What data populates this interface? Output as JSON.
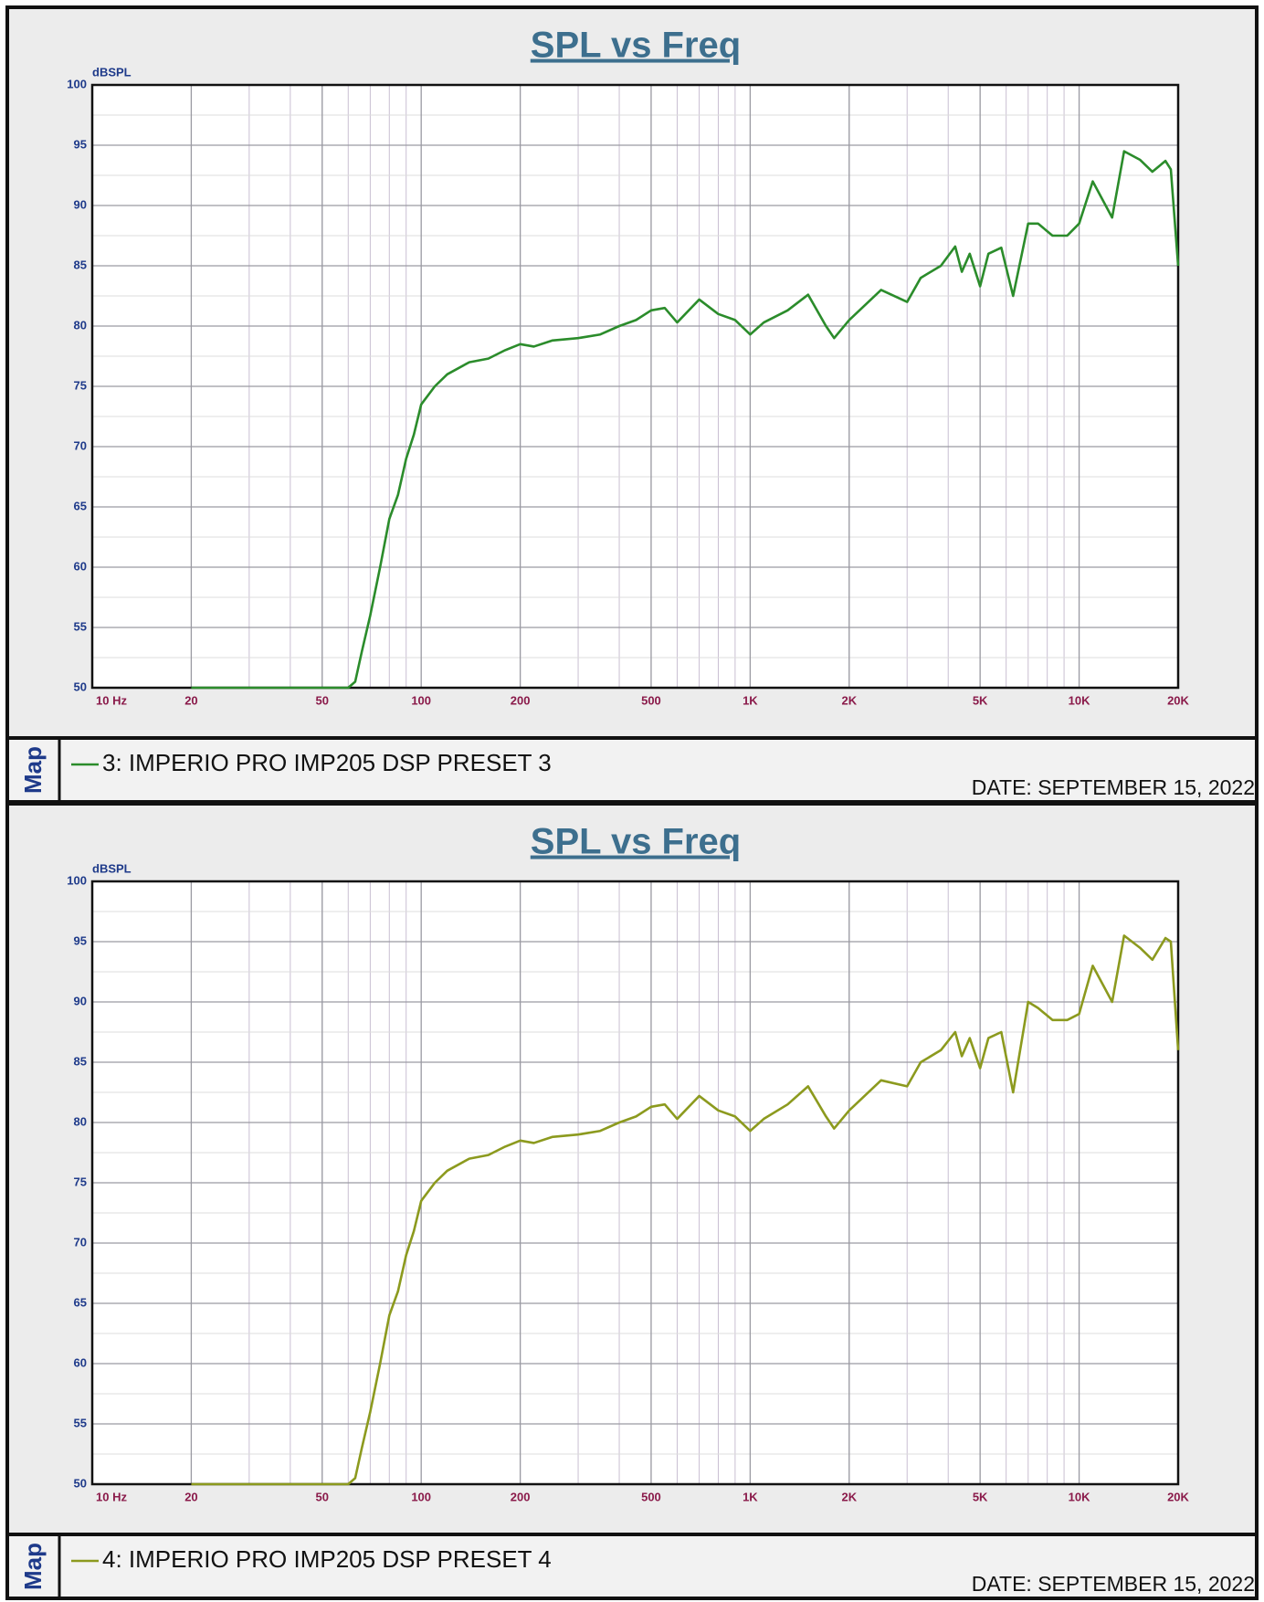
{
  "chart_data": [
    {
      "type": "line",
      "title": "SPL vs Freq",
      "ylabel": "dBSPL",
      "side_label": "Map",
      "date": "DATE: SEPTEMBER 15, 2022",
      "log_x": true,
      "grid": true,
      "xlim": [
        10,
        20000
      ],
      "ylim": [
        50,
        100
      ],
      "xticks": [
        {
          "value": 10,
          "label": "10  Hz"
        },
        20,
        50,
        100,
        200,
        500,
        {
          "value": 1000,
          "label": "1K"
        },
        {
          "value": 2000,
          "label": "2K"
        },
        {
          "value": 5000,
          "label": "5K"
        },
        {
          "value": 10000,
          "label": "10K"
        },
        {
          "value": 20000,
          "label": "20K"
        }
      ],
      "yticks": [
        50,
        55,
        60,
        65,
        70,
        75,
        80,
        85,
        90,
        95,
        100
      ],
      "x": [
        20,
        60,
        63,
        66,
        70,
        75,
        80,
        85,
        90,
        95,
        100,
        110,
        120,
        140,
        160,
        180,
        200,
        220,
        250,
        300,
        350,
        400,
        450,
        500,
        550,
        600,
        700,
        800,
        900,
        1000,
        1100,
        1300,
        1500,
        1700,
        1800,
        2000,
        2500,
        3000,
        3300,
        3800,
        4200,
        4400,
        4650,
        5000,
        5300,
        5800,
        6300,
        7000,
        7500,
        8300,
        9200,
        10000,
        11000,
        12600,
        13700,
        15300,
        16700,
        18300,
        19000,
        20000
      ],
      "series": [
        {
          "name": "3: IMPERIO PRO IMP205 DSP PRESET 3",
          "color": "#2b8c2b",
          "values": [
            50,
            50,
            50.5,
            53,
            56,
            60,
            64,
            66,
            69,
            71,
            73.5,
            75,
            76,
            77,
            77.3,
            78,
            78.5,
            78.3,
            78.8,
            79,
            79.3,
            80,
            80.5,
            81.3,
            81.5,
            80.3,
            82.2,
            81,
            80.5,
            79.3,
            80.3,
            81.3,
            82.6,
            80,
            79,
            80.5,
            83,
            82,
            84,
            85,
            86.6,
            84.5,
            86,
            83.3,
            86,
            86.5,
            82.5,
            88.5,
            88.5,
            87.5,
            87.5,
            88.5,
            92,
            89,
            94.5,
            93.8,
            92.8,
            93.7,
            93,
            85
          ]
        }
      ]
    },
    {
      "type": "line",
      "title": "SPL vs Freq",
      "ylabel": "dBSPL",
      "side_label": "Map",
      "date": "DATE: SEPTEMBER 15, 2022",
      "log_x": true,
      "grid": true,
      "xlim": [
        10,
        20000
      ],
      "ylim": [
        50,
        100
      ],
      "xticks": [
        {
          "value": 10,
          "label": "10  Hz"
        },
        20,
        50,
        100,
        200,
        500,
        {
          "value": 1000,
          "label": "1K"
        },
        {
          "value": 2000,
          "label": "2K"
        },
        {
          "value": 5000,
          "label": "5K"
        },
        {
          "value": 10000,
          "label": "10K"
        },
        {
          "value": 20000,
          "label": "20K"
        }
      ],
      "yticks": [
        50,
        55,
        60,
        65,
        70,
        75,
        80,
        85,
        90,
        95,
        100
      ],
      "x": [
        20,
        60,
        63,
        66,
        70,
        75,
        80,
        85,
        90,
        95,
        100,
        110,
        120,
        140,
        160,
        180,
        200,
        220,
        250,
        300,
        350,
        400,
        450,
        500,
        550,
        600,
        700,
        800,
        900,
        1000,
        1100,
        1300,
        1500,
        1700,
        1800,
        2000,
        2500,
        3000,
        3300,
        3800,
        4200,
        4400,
        4650,
        5000,
        5300,
        5800,
        6300,
        7000,
        7500,
        8300,
        9200,
        10000,
        11000,
        12600,
        13700,
        15300,
        16700,
        18300,
        19000,
        20000
      ],
      "series": [
        {
          "name": "4: IMPERIO PRO IMP205 DSP PRESET 4",
          "color": "#8c9a1e",
          "values": [
            50,
            50,
            50.5,
            53,
            56,
            60,
            64,
            66,
            69,
            71,
            73.5,
            75,
            76,
            77,
            77.3,
            78,
            78.5,
            78.3,
            78.8,
            79,
            79.3,
            80,
            80.5,
            81.3,
            81.5,
            80.3,
            82.2,
            81,
            80.5,
            79.3,
            80.3,
            81.5,
            83,
            80.5,
            79.5,
            81,
            83.5,
            83,
            85,
            86,
            87.5,
            85.5,
            87,
            84.5,
            87,
            87.5,
            82.5,
            90,
            89.5,
            88.5,
            88.5,
            89,
            93,
            90,
            95.5,
            94.5,
            93.5,
            95.3,
            95,
            86
          ]
        }
      ]
    }
  ]
}
